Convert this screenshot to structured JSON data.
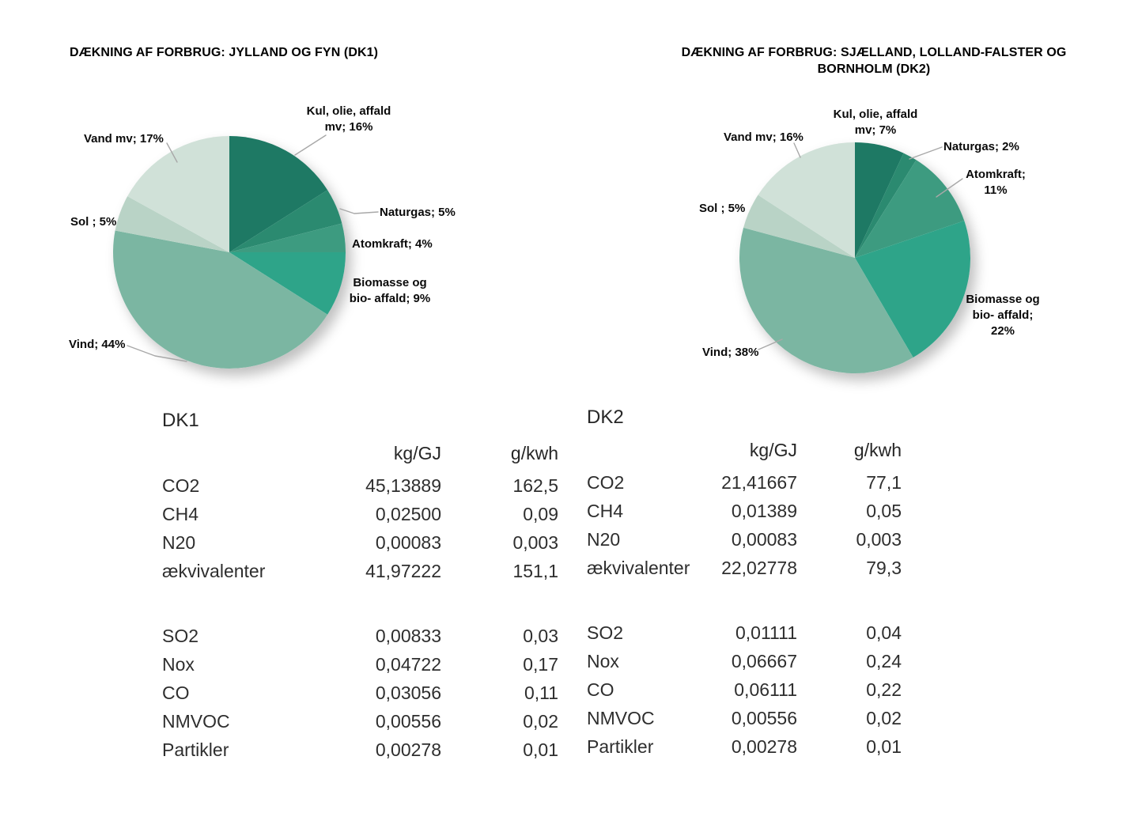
{
  "page": {
    "background": "#ffffff",
    "text_color": "#2e2e2e",
    "leader_line_color": "#a8a8a8"
  },
  "chart_data": [
    {
      "type": "pie",
      "title": "DÆKNING AF FORBRUG: JYLLAND OG FYN (DK1)",
      "unit": "%",
      "start_angle_deg": 0,
      "direction": "clockwise",
      "categories": [
        "Kul, olie, affald mv",
        "Naturgas",
        "Atomkraft",
        "Biomasse og bio- affald",
        "Vind",
        "Sol",
        "Vand mv"
      ],
      "values": [
        16,
        5,
        4,
        9,
        44,
        5,
        17
      ],
      "colors": [
        "#1E7964",
        "#2B8A70",
        "#3D9B80",
        "#2EA489",
        "#7BB6A2",
        "#B9D3C6",
        "#D0E1D8"
      ],
      "callouts": [
        "Kul, olie, affald\nmv; 16%",
        "Naturgas; 5%",
        "Atomkraft; 4%",
        "Biomasse og\nbio- affald; 9%",
        "Vind; 44%",
        "Sol ; 5%",
        "Vand mv; 17%"
      ]
    },
    {
      "type": "pie",
      "title": "DÆKNING AF FORBRUG: SJÆLLAND, LOLLAND-FALSTER OG\nBORNHOLM (DK2)",
      "unit": "%",
      "start_angle_deg": 0,
      "direction": "clockwise",
      "categories": [
        "Kul, olie, affald mv",
        "Naturgas",
        "Atomkraft",
        "Biomasse og bio- affald",
        "Vind",
        "Sol",
        "Vand mv"
      ],
      "values": [
        7,
        2,
        11,
        22,
        38,
        5,
        16
      ],
      "colors": [
        "#1E7964",
        "#2B8A70",
        "#3D9B80",
        "#2EA489",
        "#7BB6A2",
        "#B9D3C6",
        "#D0E1D8"
      ],
      "callouts": [
        "Kul, olie, affald\nmv; 7%",
        "Naturgas; 2%",
        "Atomkraft;\n11%",
        "Biomasse og\nbio- affald;\n22%",
        "Vind; 38%",
        "Sol ; 5%",
        "Vand mv; 16%"
      ]
    },
    {
      "type": "table",
      "title": "DK1",
      "columns": [
        "kg/GJ",
        "g/kwh"
      ],
      "sections": [
        {
          "rows": [
            [
              "CO2",
              "45,13889",
              "162,5"
            ],
            [
              "CH4",
              "0,02500",
              "0,09"
            ],
            [
              "N20",
              "0,00083",
              "0,003"
            ],
            [
              "ækvivalenter",
              "41,97222",
              "151,1"
            ]
          ]
        },
        {
          "rows": [
            [
              "SO2",
              "0,00833",
              "0,03"
            ],
            [
              "Nox",
              "0,04722",
              "0,17"
            ],
            [
              "CO",
              "0,03056",
              "0,11"
            ],
            [
              "NMVOC",
              "0,00556",
              "0,02"
            ],
            [
              "Partikler",
              "0,00278",
              "0,01"
            ]
          ]
        }
      ]
    },
    {
      "type": "table",
      "title": "DK2",
      "columns": [
        "kg/GJ",
        "g/kwh"
      ],
      "sections": [
        {
          "rows": [
            [
              "CO2",
              "21,41667",
              "77,1"
            ],
            [
              "CH4",
              "0,01389",
              "0,05"
            ],
            [
              "N20",
              "0,00083",
              "0,003"
            ],
            [
              "ækvivalenter",
              "22,02778",
              "79,3"
            ]
          ]
        },
        {
          "rows": [
            [
              "SO2",
              "0,01111",
              "0,04"
            ],
            [
              "Nox",
              "0,06667",
              "0,24"
            ],
            [
              "CO",
              "0,06111",
              "0,22"
            ],
            [
              "NMVOC",
              "0,00556",
              "0,02"
            ],
            [
              "Partikler",
              "0,00278",
              "0,01"
            ]
          ]
        }
      ]
    }
  ]
}
